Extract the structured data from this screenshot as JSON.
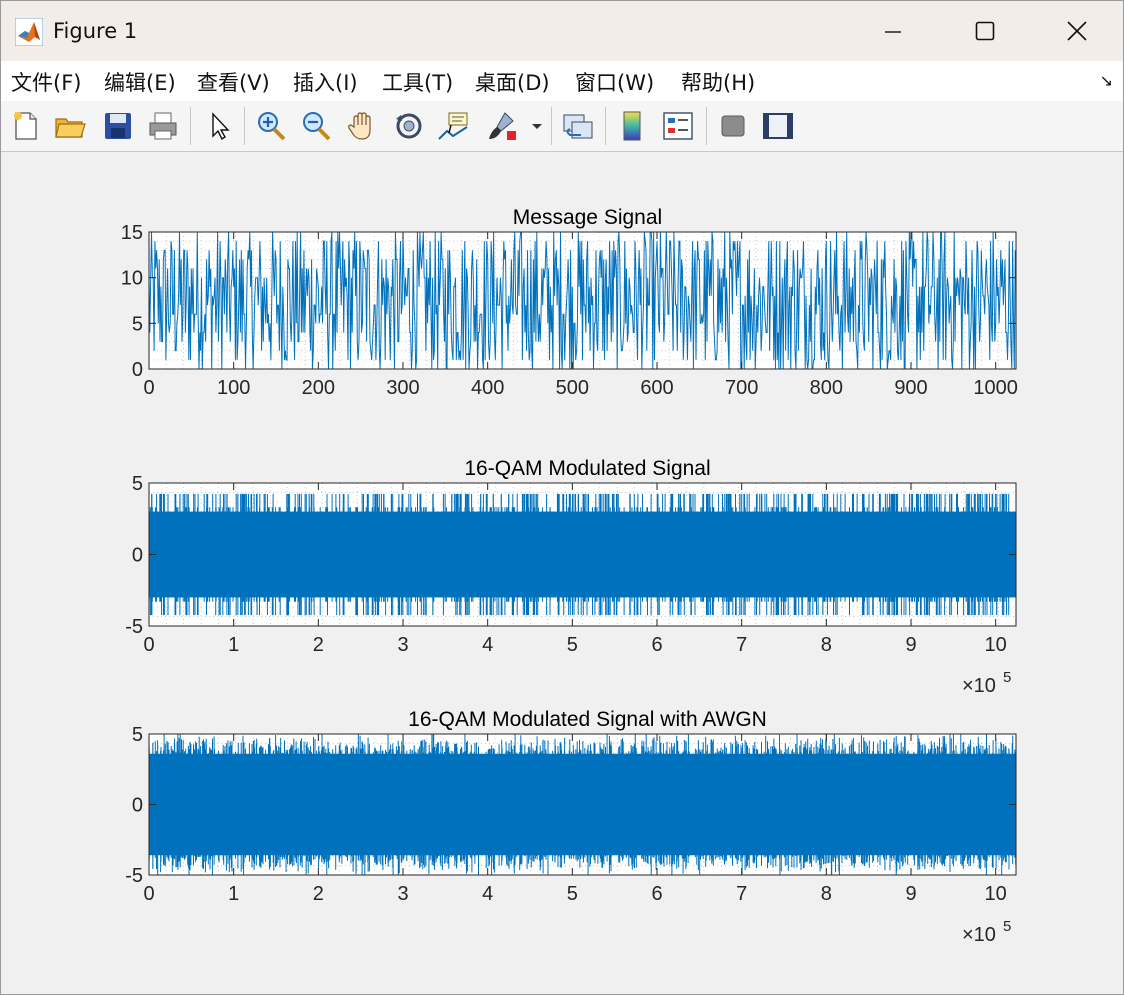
{
  "window": {
    "title": "Figure 1",
    "minimize_glyph": "—",
    "maximize_glyph": "☐",
    "close_glyph": "✕"
  },
  "menu": {
    "items": [
      {
        "label": "文件(F)"
      },
      {
        "label": "编辑(E)"
      },
      {
        "label": "查看(V)"
      },
      {
        "label": "插入(I)"
      },
      {
        "label": "工具(T)"
      },
      {
        "label": "桌面(D)"
      },
      {
        "label": "窗口(W)"
      },
      {
        "label": "帮助(H)"
      }
    ],
    "overflow_glyph": "↘"
  },
  "toolbar": {
    "icons": [
      "new-figure-icon",
      "open-file-icon",
      "save-icon",
      "print-icon",
      "pointer-icon",
      "zoom-in-icon",
      "zoom-out-icon",
      "pan-hand-icon",
      "rotate-3d-icon",
      "data-cursor-icon",
      "brush-icon",
      "brush-dropdown-icon",
      "link-plot-icon",
      "colorbar-icon",
      "legend-icon",
      "hide-plot-tools-icon",
      "show-plot-tools-icon"
    ]
  },
  "colors": {
    "line": "#0072bd",
    "axes_bg": "#ffffff",
    "figure_bg": "#f0f0f0",
    "text": "#262626"
  },
  "chart_data": [
    {
      "type": "line",
      "title": "Message Signal",
      "xlabel": "",
      "ylabel": "",
      "xlim": [
        0,
        1024
      ],
      "ylim": [
        0,
        15
      ],
      "xticks": [
        0,
        100,
        200,
        300,
        400,
        500,
        600,
        700,
        800,
        900,
        1000
      ],
      "xtick_labels": [
        "0",
        "100",
        "200",
        "300",
        "400",
        "500",
        "600",
        "700",
        "800",
        "900",
        "1000"
      ],
      "yticks": [
        0,
        5,
        10,
        15
      ],
      "ytick_labels": [
        "0",
        "5",
        "10",
        "15"
      ],
      "x_exponent_label": "",
      "grid": "minor-dotted",
      "style": "stairs",
      "series": [
        {
          "n_points": 1024,
          "value_range": [
            0,
            15
          ],
          "values": "random integer symbols 0–15"
        }
      ]
    },
    {
      "type": "line",
      "title": "16-QAM Modulated Signal",
      "xlabel": "",
      "ylabel": "",
      "xlim": [
        0,
        1024000
      ],
      "ylim": [
        -5,
        5
      ],
      "xticks": [
        0,
        100000,
        200000,
        300000,
        400000,
        500000,
        600000,
        700000,
        800000,
        900000,
        1000000
      ],
      "xtick_labels": [
        "0",
        "1",
        "2",
        "3",
        "4",
        "5",
        "6",
        "7",
        "8",
        "9",
        "10"
      ],
      "yticks": [
        -5,
        0,
        5
      ],
      "ytick_labels": [
        "-5",
        "0",
        "5"
      ],
      "x_exponent_label": "×10",
      "x_exponent_power": "5",
      "grid": "minor-dotted",
      "style": "dense",
      "series": [
        {
          "envelope": [
            -4.24,
            4.24
          ],
          "core_band": [
            -3.0,
            3.0
          ]
        }
      ]
    },
    {
      "type": "line",
      "title": "16-QAM Modulated Signal with AWGN",
      "xlabel": "",
      "ylabel": "",
      "xlim": [
        0,
        1024000
      ],
      "ylim": [
        -5,
        5
      ],
      "xticks": [
        0,
        100000,
        200000,
        300000,
        400000,
        500000,
        600000,
        700000,
        800000,
        900000,
        1000000
      ],
      "xtick_labels": [
        "0",
        "1",
        "2",
        "3",
        "4",
        "5",
        "6",
        "7",
        "8",
        "9",
        "10"
      ],
      "yticks": [
        -5,
        0,
        5
      ],
      "ytick_labels": [
        "-5",
        "0",
        "5"
      ],
      "x_exponent_label": "×10",
      "x_exponent_power": "5",
      "grid": "minor-dotted",
      "style": "dense-noisy",
      "series": [
        {
          "envelope": [
            -5.0,
            5.0
          ],
          "core_band": [
            -3.6,
            3.6
          ]
        }
      ]
    }
  ]
}
